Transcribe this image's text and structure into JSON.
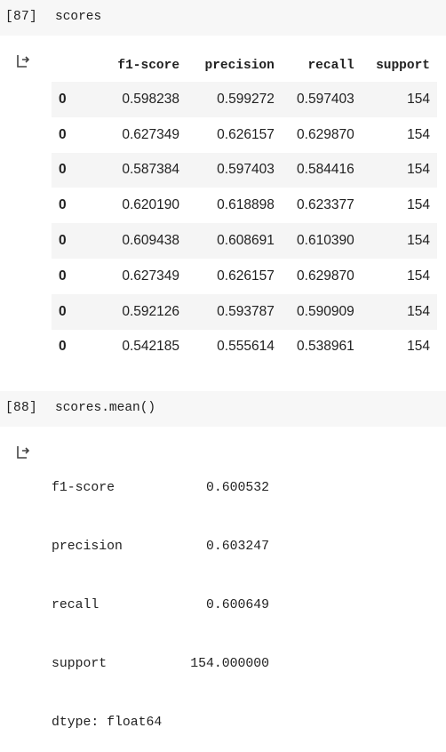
{
  "cell1": {
    "prompt": "[87]",
    "code": "scores",
    "output_icon": "output-arrow-icon",
    "table": {
      "columns": [
        "",
        "f1-score",
        "precision",
        "recall",
        "support"
      ],
      "rows": [
        {
          "index": "0",
          "f1": "0.598238",
          "precision": "0.599272",
          "recall": "0.597403",
          "support": "154"
        },
        {
          "index": "0",
          "f1": "0.627349",
          "precision": "0.626157",
          "recall": "0.629870",
          "support": "154"
        },
        {
          "index": "0",
          "f1": "0.587384",
          "precision": "0.597403",
          "recall": "0.584416",
          "support": "154"
        },
        {
          "index": "0",
          "f1": "0.620190",
          "precision": "0.618898",
          "recall": "0.623377",
          "support": "154"
        },
        {
          "index": "0",
          "f1": "0.609438",
          "precision": "0.608691",
          "recall": "0.610390",
          "support": "154"
        },
        {
          "index": "0",
          "f1": "0.627349",
          "precision": "0.626157",
          "recall": "0.629870",
          "support": "154"
        },
        {
          "index": "0",
          "f1": "0.592126",
          "precision": "0.593787",
          "recall": "0.590909",
          "support": "154"
        },
        {
          "index": "0",
          "f1": "0.542185",
          "precision": "0.555614",
          "recall": "0.538961",
          "support": "154"
        }
      ]
    }
  },
  "cell2": {
    "prompt": "[88]",
    "code": "scores.mean()",
    "output_icon": "output-arrow-icon",
    "series": [
      {
        "key": "f1-score",
        "value": "0.600532"
      },
      {
        "key": "precision",
        "value": "0.603247"
      },
      {
        "key": "recall",
        "value": "0.600649"
      },
      {
        "key": "support",
        "value": "154.000000"
      }
    ],
    "dtype": "dtype: float64"
  }
}
